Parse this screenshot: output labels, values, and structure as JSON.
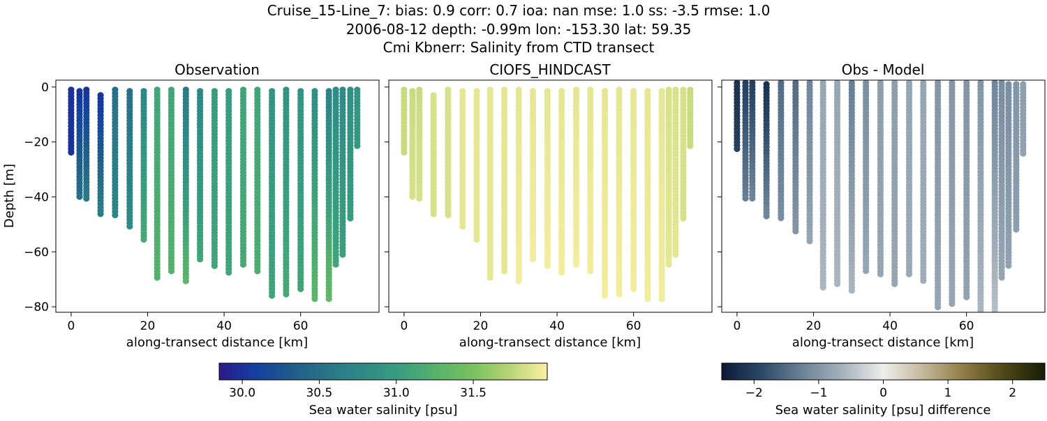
{
  "title": {
    "line1": "Cruise_15-Line_7: bias: 0.9  corr: 0.7  ioa: nan  mse: 1.0  ss: -3.5  rmse: 1.0",
    "line2": "2006-08-12 depth: -0.99m lon: -153.30 lat: 59.35",
    "line3": "Cmi Kbnerr: Salinity from CTD transect"
  },
  "chart_data": [
    {
      "type": "scatter",
      "title": "Observation",
      "xlabel": "along-transect distance [km]",
      "ylabel": "Depth [m]",
      "xlim": [
        -4,
        80.5
      ],
      "ylim": [
        -82,
        2.5
      ],
      "xticks": [
        0,
        20,
        40,
        60
      ],
      "yticks": [
        0,
        -20,
        -40,
        -60,
        -80
      ],
      "colormap": "haline",
      "profiles": [
        {
          "x": 0,
          "top": -1,
          "bottom": -24.5,
          "value_top": 30.0,
          "value_bottom": 30.0
        },
        {
          "x": 2.2,
          "top": -1.5,
          "bottom": -40.5,
          "value_top": 30.0,
          "value_bottom": 30.5
        },
        {
          "x": 4,
          "top": -1,
          "bottom": -41.5,
          "value_top": 30.0,
          "value_bottom": 30.6
        },
        {
          "x": 7.7,
          "top": -3,
          "bottom": -46.5,
          "value_top": 30.0,
          "value_bottom": 30.65
        },
        {
          "x": 11.5,
          "top": -1,
          "bottom": -47.5,
          "value_top": 30.5,
          "value_bottom": 30.75
        },
        {
          "x": 15.3,
          "top": -1.5,
          "bottom": -51.5,
          "value_top": 30.5,
          "value_bottom": 30.8
        },
        {
          "x": 19,
          "top": -1.5,
          "bottom": -55.5,
          "value_top": 30.75,
          "value_bottom": 31.15
        },
        {
          "x": 22.5,
          "top": -1,
          "bottom": -70,
          "value_top": 31.1,
          "value_bottom": 31.25
        },
        {
          "x": 26.2,
          "top": -1,
          "bottom": -68,
          "value_top": 31.1,
          "value_bottom": 31.25
        },
        {
          "x": 30,
          "top": -1,
          "bottom": -71,
          "value_top": 30.6,
          "value_bottom": 31.3
        },
        {
          "x": 33.7,
          "top": -1.5,
          "bottom": -63.5,
          "value_top": 30.75,
          "value_bottom": 31.1
        },
        {
          "x": 37.5,
          "top": -1.5,
          "bottom": -65.5,
          "value_top": 31.0,
          "value_bottom": 31.1
        },
        {
          "x": 41.2,
          "top": -1.5,
          "bottom": -68.5,
          "value_top": 31.0,
          "value_bottom": 31.1
        },
        {
          "x": 45,
          "top": -1,
          "bottom": -65,
          "value_top": 31.1,
          "value_bottom": 31.15
        },
        {
          "x": 48.7,
          "top": -1,
          "bottom": -68,
          "value_top": 31.1,
          "value_bottom": 31.2
        },
        {
          "x": 52.5,
          "top": -1.5,
          "bottom": -77,
          "value_top": 30.9,
          "value_bottom": 31.1
        },
        {
          "x": 56.2,
          "top": -1,
          "bottom": -76,
          "value_top": 30.9,
          "value_bottom": 31.15
        },
        {
          "x": 60,
          "top": -1.5,
          "bottom": -74,
          "value_top": 30.9,
          "value_bottom": 31.1
        },
        {
          "x": 63.7,
          "top": -1.5,
          "bottom": -78,
          "value_top": 30.85,
          "value_bottom": 31.3
        },
        {
          "x": 67.4,
          "top": -1.5,
          "bottom": -78,
          "value_top": 30.7,
          "value_bottom": 31.35
        },
        {
          "x": 69.2,
          "top": -1,
          "bottom": -65.5,
          "value_top": 30.8,
          "value_bottom": 31.1
        },
        {
          "x": 71,
          "top": -1,
          "bottom": -61.5,
          "value_top": 30.8,
          "value_bottom": 31.05
        },
        {
          "x": 73,
          "top": -1,
          "bottom": -48.5,
          "value_top": 30.85,
          "value_bottom": 31.0
        },
        {
          "x": 74.8,
          "top": -1,
          "bottom": -21.5,
          "value_top": 30.9,
          "value_bottom": 30.95
        }
      ]
    },
    {
      "type": "scatter",
      "title": "CIOFS_HINDCAST",
      "xlabel": "along-transect distance [km]",
      "xlim": [
        -4,
        80.5
      ],
      "ylim": [
        -82,
        2.5
      ],
      "xticks": [
        0,
        20,
        40,
        60
      ],
      "colormap": "haline",
      "profiles": [
        {
          "x": 0,
          "top": -1,
          "bottom": -24.5,
          "value_top": 31.8,
          "value_bottom": 31.8
        },
        {
          "x": 2.2,
          "top": -1.5,
          "bottom": -40.5,
          "value_top": 31.8,
          "value_bottom": 31.85
        },
        {
          "x": 4,
          "top": -1,
          "bottom": -41.5,
          "value_top": 31.8,
          "value_bottom": 31.85
        },
        {
          "x": 7.7,
          "top": -3,
          "bottom": -46.5,
          "value_top": 31.85,
          "value_bottom": 31.85
        },
        {
          "x": 11.5,
          "top": -1,
          "bottom": -47.5,
          "value_top": 31.85,
          "value_bottom": 31.85
        },
        {
          "x": 15.3,
          "top": -1.5,
          "bottom": -51.5,
          "value_top": 31.9,
          "value_bottom": 31.9
        },
        {
          "x": 19,
          "top": -1.5,
          "bottom": -55.5,
          "value_top": 31.9,
          "value_bottom": 31.9
        },
        {
          "x": 22.5,
          "top": -1,
          "bottom": -70,
          "value_top": 31.9,
          "value_bottom": 31.9
        },
        {
          "x": 26.2,
          "top": -1,
          "bottom": -68,
          "value_top": 31.9,
          "value_bottom": 31.9
        },
        {
          "x": 30,
          "top": -1,
          "bottom": -71,
          "value_top": 31.9,
          "value_bottom": 31.95
        },
        {
          "x": 33.7,
          "top": -1.5,
          "bottom": -63.5,
          "value_top": 31.9,
          "value_bottom": 31.95
        },
        {
          "x": 37.5,
          "top": -1.5,
          "bottom": -65.5,
          "value_top": 31.9,
          "value_bottom": 31.95
        },
        {
          "x": 41.2,
          "top": -1.5,
          "bottom": -68.5,
          "value_top": 31.9,
          "value_bottom": 31.95
        },
        {
          "x": 45,
          "top": -1,
          "bottom": -65,
          "value_top": 31.9,
          "value_bottom": 31.95
        },
        {
          "x": 48.7,
          "top": -1,
          "bottom": -68,
          "value_top": 31.9,
          "value_bottom": 31.95
        },
        {
          "x": 52.5,
          "top": -1.5,
          "bottom": -77,
          "value_top": 31.9,
          "value_bottom": 31.95
        },
        {
          "x": 56.2,
          "top": -1,
          "bottom": -76,
          "value_top": 31.9,
          "value_bottom": 31.95
        },
        {
          "x": 60,
          "top": -1.5,
          "bottom": -74,
          "value_top": 31.9,
          "value_bottom": 31.95
        },
        {
          "x": 63.7,
          "top": -1.5,
          "bottom": -78,
          "value_top": 31.9,
          "value_bottom": 31.95
        },
        {
          "x": 67.4,
          "top": -1.5,
          "bottom": -78,
          "value_top": 31.9,
          "value_bottom": 31.95
        },
        {
          "x": 69.2,
          "top": -1,
          "bottom": -65.5,
          "value_top": 31.85,
          "value_bottom": 31.9
        },
        {
          "x": 71,
          "top": -1,
          "bottom": -61.5,
          "value_top": 31.85,
          "value_bottom": 31.9
        },
        {
          "x": 73,
          "top": -1,
          "bottom": -48.5,
          "value_top": 31.85,
          "value_bottom": 31.85
        },
        {
          "x": 74.8,
          "top": -1,
          "bottom": -21.5,
          "value_top": 31.8,
          "value_bottom": 31.8
        }
      ]
    },
    {
      "type": "scatter",
      "title": "Obs - Model",
      "xlabel": "along-transect distance [km]",
      "xlim": [
        -4,
        80.5
      ],
      "ylim": [
        -82,
        2.5
      ],
      "xticks": [
        0,
        20,
        40,
        60
      ],
      "colormap": "diff",
      "profiles": [
        {
          "x": 0,
          "top": 1.5,
          "bottom": -23.5,
          "value_top": -2.2,
          "value_bottom": -2.0
        },
        {
          "x": 2.2,
          "top": 1.5,
          "bottom": -40.5,
          "value_top": -2.0,
          "value_bottom": -1.3
        },
        {
          "x": 4,
          "top": 1.5,
          "bottom": -41.5,
          "value_top": -2.0,
          "value_bottom": -1.2
        },
        {
          "x": 7.7,
          "top": 1,
          "bottom": -47,
          "value_top": -2.2,
          "value_bottom": -1.2
        },
        {
          "x": 11.5,
          "top": 1.5,
          "bottom": -48.5,
          "value_top": -1.5,
          "value_bottom": -1.1
        },
        {
          "x": 15.3,
          "top": 1.5,
          "bottom": -52.5,
          "value_top": -1.5,
          "value_bottom": -1.0
        },
        {
          "x": 19,
          "top": 1.5,
          "bottom": -57,
          "value_top": -1.2,
          "value_bottom": -0.8
        },
        {
          "x": 22.5,
          "top": 1.5,
          "bottom": -73.5,
          "value_top": -0.8,
          "value_bottom": -0.6
        },
        {
          "x": 26.2,
          "top": 1.5,
          "bottom": -72,
          "value_top": -0.8,
          "value_bottom": -0.6
        },
        {
          "x": 30,
          "top": 1.5,
          "bottom": -74.5,
          "value_top": -1.3,
          "value_bottom": -0.6
        },
        {
          "x": 33.7,
          "top": 1.5,
          "bottom": -67.5,
          "value_top": -1.1,
          "value_bottom": -0.8
        },
        {
          "x": 37.5,
          "top": 1.5,
          "bottom": -69,
          "value_top": -0.9,
          "value_bottom": -0.8
        },
        {
          "x": 41.2,
          "top": 1.5,
          "bottom": -72,
          "value_top": -0.9,
          "value_bottom": -0.8
        },
        {
          "x": 45,
          "top": 1.5,
          "bottom": -68.5,
          "value_top": -0.8,
          "value_bottom": -0.75
        },
        {
          "x": 48.7,
          "top": 1.5,
          "bottom": -71.5,
          "value_top": -0.8,
          "value_bottom": -0.7
        },
        {
          "x": 52.5,
          "top": 1.5,
          "bottom": -81,
          "value_top": -1.0,
          "value_bottom": -0.8
        },
        {
          "x": 56.2,
          "top": 1.5,
          "bottom": -80,
          "value_top": -1.0,
          "value_bottom": -0.8
        },
        {
          "x": 60,
          "top": 1.5,
          "bottom": -77.5,
          "value_top": -1.0,
          "value_bottom": -0.85
        },
        {
          "x": 63.7,
          "top": 1.5,
          "bottom": -82,
          "value_top": -1.0,
          "value_bottom": -0.6
        },
        {
          "x": 67.4,
          "top": 1.5,
          "bottom": -82,
          "value_top": -1.2,
          "value_bottom": -0.5
        },
        {
          "x": 69.2,
          "top": 1.5,
          "bottom": -69.5,
          "value_top": -1.1,
          "value_bottom": -0.8
        },
        {
          "x": 71,
          "top": 1,
          "bottom": -65,
          "value_top": -1.1,
          "value_bottom": -0.85
        },
        {
          "x": 73,
          "top": 1,
          "bottom": -52,
          "value_top": -1.0,
          "value_bottom": -0.9
        },
        {
          "x": 74.8,
          "top": 1,
          "bottom": -25,
          "value_top": -0.9,
          "value_bottom": -0.85
        }
      ]
    }
  ],
  "colorbars": [
    {
      "label": "Sea water salinity [psu]",
      "vmin": 29.85,
      "vmax": 31.98,
      "ticks": [
        30.0,
        30.5,
        31.0,
        31.5
      ],
      "tick_labels": [
        "30.0",
        "30.5",
        "31.0",
        "31.5"
      ],
      "colormap": "haline"
    },
    {
      "label": "Sea water salinity [psu] difference",
      "vmin": -2.5,
      "vmax": 2.5,
      "ticks": [
        -2,
        -1,
        0,
        1,
        2
      ],
      "tick_labels": [
        "−2",
        "−1",
        "0",
        "1",
        "2"
      ],
      "colormap": "diff"
    }
  ],
  "colors": {
    "haline": [
      "#2a1a8c",
      "#1340a0",
      "#1e5c8a",
      "#2a7689",
      "#2e8b86",
      "#3a9e7f",
      "#58b36a",
      "#7ac25f",
      "#b9d576",
      "#fbf0a3"
    ],
    "diff": [
      "#0b1a38",
      "#2c4a68",
      "#6b8398",
      "#a7b3bd",
      "#eeeeeb",
      "#c4b79a",
      "#8f7b43",
      "#4e4716",
      "#161d06"
    ]
  }
}
